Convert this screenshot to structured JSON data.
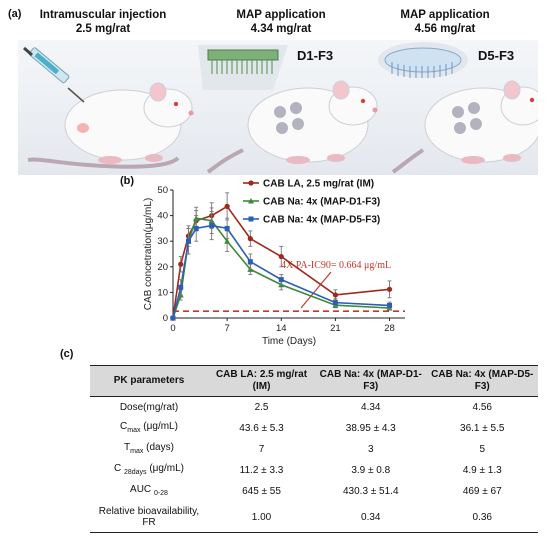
{
  "panel_a": {
    "label": "(a)",
    "titles": [
      {
        "line1": "Intramuscular injection",
        "line2": "2.5 mg/rat"
      },
      {
        "line1": "MAP application",
        "line2": "4.34 mg/rat"
      },
      {
        "line1": "MAP application",
        "line2": "4.56 mg/rat"
      }
    ],
    "patch_labels": [
      "D1-F3",
      "D5-F3"
    ]
  },
  "panel_b": {
    "label": "(b)",
    "chart_data": {
      "type": "line",
      "xlabel": "Time (Days)",
      "ylabel": "CAB concetration(μg/mL)",
      "xlim": [
        0,
        30
      ],
      "ylim": [
        0,
        50
      ],
      "xticks": [
        "0",
        "7",
        "14",
        "21",
        "28"
      ],
      "yticks": [
        "0",
        "10",
        "20",
        "30",
        "40",
        "50"
      ],
      "legend_position": "top-right",
      "series": [
        {
          "name": "CAB LA, 2.5 mg/rat (IM)",
          "color": "#a0281c",
          "marker": "circle",
          "x": [
            0,
            1,
            2,
            3,
            5,
            7,
            10,
            14,
            21,
            28
          ],
          "y": [
            0,
            21,
            32,
            38,
            40,
            43.6,
            31,
            24,
            9,
            11.2
          ],
          "err": [
            0,
            3,
            4,
            4,
            5,
            5.3,
            3,
            4,
            2,
            3.3
          ]
        },
        {
          "name": "CAB Na: 4x (MAP-D1-F3)",
          "color": "#3a8a3a",
          "marker": "triangle",
          "x": [
            0,
            1,
            2,
            3,
            5,
            7,
            10,
            14,
            21,
            28
          ],
          "y": [
            0,
            9,
            30,
            38.95,
            38,
            30,
            19,
            13,
            5,
            3.9
          ],
          "err": [
            0,
            2,
            5,
            4.3,
            5,
            4,
            2,
            2,
            1,
            0.8
          ]
        },
        {
          "name": "CAB Na: 4x (MAP-D5-F3)",
          "color": "#2b5fb5",
          "marker": "square",
          "x": [
            0,
            1,
            2,
            3,
            5,
            7,
            10,
            14,
            21,
            28
          ],
          "y": [
            0,
            12,
            30,
            35,
            36.1,
            35,
            22,
            15,
            6,
            4.9
          ],
          "err": [
            0,
            3,
            5,
            5,
            5.5,
            4,
            3,
            2,
            1.5,
            1.3
          ]
        }
      ],
      "reference_line": {
        "label": "4X PA-IC90= 0.664 μg/mL",
        "y": 2.656,
        "color": "#c0392b"
      }
    }
  },
  "panel_c": {
    "label": "(c)",
    "headers": [
      "PK parameters",
      "CAB LA: 2.5 mg/rat (IM)",
      "CAB Na: 4x (MAP-D1-F3)",
      "CAB Na: 4x (MAP-D5-F3)"
    ],
    "rows": [
      {
        "label": "Dose(mg/rat)",
        "values": [
          "2.5",
          "4.34",
          "4.56"
        ]
      },
      {
        "label_main": "C",
        "label_sub": "max",
        "label_tail": " (μg/mL)",
        "values": [
          "43.6 ± 5.3",
          "38.95 ± 4.3",
          "36.1 ± 5.5"
        ]
      },
      {
        "label_main": "T",
        "label_sub": "max",
        "label_tail": " (days)",
        "values": [
          "7",
          "3",
          "5"
        ]
      },
      {
        "label_main": "C ",
        "label_sub": "28days",
        "label_tail": " (μg/mL)",
        "values": [
          "11.2 ± 3.3",
          "3.9 ± 0.8",
          "4.9 ± 1.3"
        ]
      },
      {
        "label_main": "AUC ",
        "label_sub": "0-28",
        "label_tail": "",
        "values": [
          "645 ± 55",
          "430.3 ± 51.4",
          "469 ± 67"
        ]
      },
      {
        "label": "Relative bioavailability, FR",
        "values": [
          "1.00",
          "0.34",
          "0.36"
        ]
      }
    ]
  }
}
